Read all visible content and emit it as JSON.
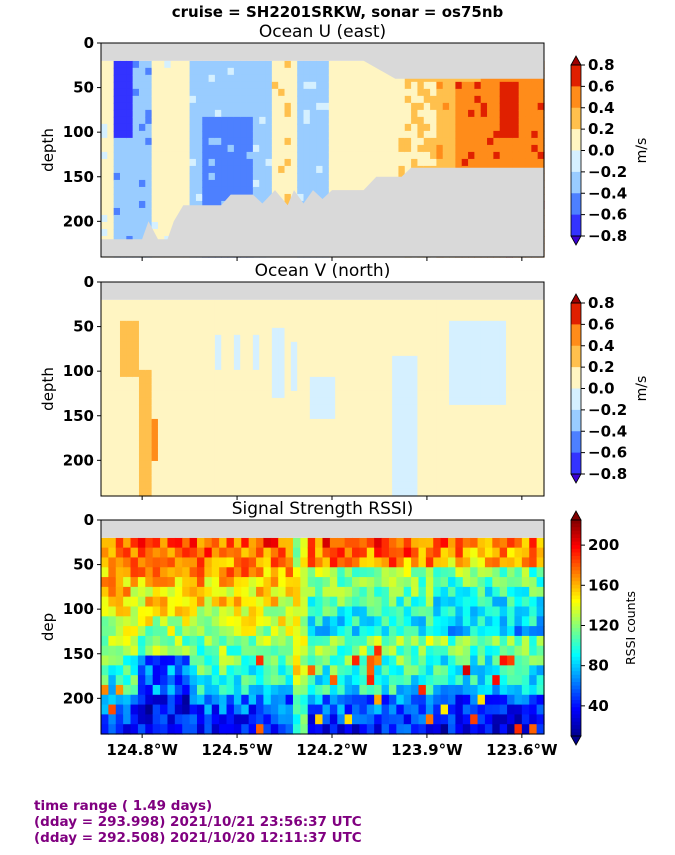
{
  "suptitle": "cruise = SH2201SRKW,  sonar = os75nb",
  "footer": {
    "line1": "time range ( 1.49 days)",
    "line2": "(dday = 293.998) 2021/10/21 23:56:37 UTC",
    "line3": "(dday = 292.508) 2021/10/20 12:11:37 UTC"
  },
  "colors": {
    "nodata": "#d9d9d9",
    "footer_text": "#800080",
    "jet_stops": [
      "#00008f",
      "#0000ff",
      "#0080ff",
      "#00ffff",
      "#80ff80",
      "#ffff00",
      "#ff8000",
      "#ff0000",
      "#800000"
    ],
    "vel_levels": [
      "#3b00d4",
      "#3333ff",
      "#4d80ff",
      "#99ccff",
      "#d5f0ff",
      "#fff5c2",
      "#ffc04d",
      "#ff8c1a",
      "#e02000",
      "#a00000"
    ]
  },
  "chart_data": [
    {
      "type": "heatmap",
      "title": "Ocean U (east)",
      "ylabel": "depth",
      "xlabel": "",
      "yticks": [
        0,
        50,
        100,
        150,
        200
      ],
      "ylim": [
        240,
        0
      ],
      "xlim": [
        -124.93,
        -123.53
      ],
      "xticks": [
        -124.8,
        -124.5,
        -124.2,
        -123.9,
        -123.6
      ],
      "xtick_labels": [],
      "colorbar": {
        "label": "m/s",
        "levels": [
          -0.8,
          -0.6,
          -0.4,
          -0.2,
          0.0,
          0.2,
          0.4,
          0.6,
          0.8
        ],
        "tick_labels": [
          "0.8",
          "0.6",
          "0.4",
          "0.2",
          "0.0",
          "−0.2",
          "−0.4",
          "−0.6",
          "−0.8"
        ],
        "extend": "both"
      },
      "top_nodata_depth": 20,
      "bottom_depth_profile": [
        [
          -124.93,
          220
        ],
        [
          -124.85,
          220
        ],
        [
          -124.8,
          220
        ],
        [
          -124.78,
          200
        ],
        [
          -124.75,
          220
        ],
        [
          -124.72,
          220
        ],
        [
          -124.7,
          200
        ],
        [
          -124.67,
          182
        ],
        [
          -124.55,
          182
        ],
        [
          -124.52,
          170
        ],
        [
          -124.45,
          170
        ],
        [
          -124.42,
          180
        ],
        [
          -124.38,
          165
        ],
        [
          -124.34,
          182
        ],
        [
          -124.32,
          165
        ],
        [
          -124.29,
          180
        ],
        [
          -124.26,
          165
        ],
        [
          -124.23,
          175
        ],
        [
          -124.2,
          165
        ],
        [
          -124.1,
          165
        ],
        [
          -124.06,
          150
        ],
        [
          -123.98,
          150
        ],
        [
          -123.95,
          140
        ],
        [
          -123.53,
          140
        ]
      ],
      "top_profile_right": [
        [
          -124.1,
          20
        ],
        [
          -124.0,
          40
        ],
        [
          -123.53,
          40
        ]
      ],
      "feature_values": {
        "west_core": -0.7,
        "west_band": -0.35,
        "mid_band": -0.25,
        "mid_core": -0.45,
        "west_pos_band": 0.25,
        "east_pos": 0.35,
        "east_core": 0.55,
        "east_peak": 0.75
      }
    },
    {
      "type": "heatmap",
      "title": "Ocean V (north)",
      "ylabel": "depth",
      "xlabel": "",
      "yticks": [
        0,
        50,
        100,
        150,
        200
      ],
      "ylim": [
        240,
        0
      ],
      "xlim": [
        -124.93,
        -123.53
      ],
      "xticks": [
        -124.8,
        -124.5,
        -124.2,
        -123.9,
        -123.6
      ],
      "xtick_labels": [],
      "colorbar": {
        "label": "m/s",
        "levels": [
          -0.8,
          -0.6,
          -0.4,
          -0.2,
          0.0,
          0.2,
          0.4,
          0.6,
          0.8
        ],
        "tick_labels": [
          "0.8",
          "0.6",
          "0.4",
          "0.2",
          "0.0",
          "−0.2",
          "−0.4",
          "−0.6",
          "−0.8"
        ],
        "extend": "both"
      },
      "top_nodata_depth": 20,
      "feature_values": {
        "west_core": 0.3,
        "west_peak": 0.5,
        "mid_neg": -0.1,
        "east_neg": -0.15,
        "background": 0.05
      }
    },
    {
      "type": "heatmap",
      "title": "Signal Strength RSSI)",
      "ylabel": "dep",
      "xlabel": "",
      "yticks": [
        0,
        50,
        100,
        150,
        200
      ],
      "ylim": [
        240,
        0
      ],
      "xlim": [
        -124.93,
        -123.53
      ],
      "xticks": [
        -124.8,
        -124.5,
        -124.2,
        -123.9,
        -123.6
      ],
      "xtick_labels": [
        "124.8°W",
        "124.5°W",
        "124.2°W",
        "123.9°W",
        "123.6°W"
      ],
      "colorbar": {
        "label": "RSSI counts",
        "ticks": [
          40,
          80,
          120,
          160,
          200
        ],
        "tick_labels": [
          "200",
          "160",
          "120",
          "80",
          "40"
        ],
        "range": [
          10,
          225
        ],
        "extend": "both"
      },
      "top_nodata_depth": 20,
      "feature_values": {
        "surface": 185,
        "mid": 110,
        "deep": 70,
        "east_low": 55,
        "bursts": 190
      }
    }
  ]
}
